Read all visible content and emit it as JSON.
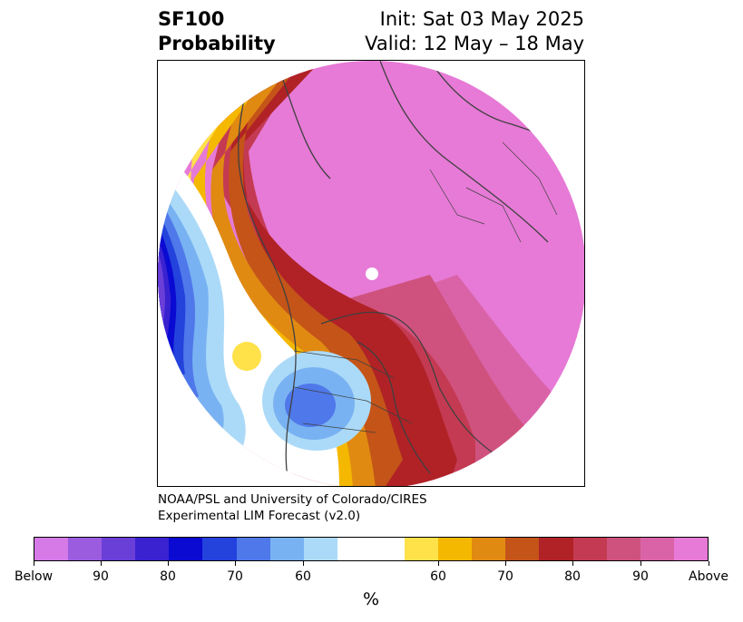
{
  "title": {
    "line1_left": "SF100",
    "line2_left": "Probability",
    "line1_right": "Init: Sat 03 May 2025",
    "line2_right": "Valid: 12 May – 18 May"
  },
  "credit": {
    "line1": "NOAA/PSL and University of Colorado/CIRES",
    "line2": "Experimental LIM Forecast (v2.0)"
  },
  "colorbar": {
    "unit": "%",
    "colors": [
      "#d67ae8",
      "#9b5ce0",
      "#6a3fd8",
      "#3a22d0",
      "#0a0ad2",
      "#2442dc",
      "#4f78ea",
      "#78b2f2",
      "#abdaf8",
      "#ffffff",
      "#ffffff",
      "#ffe14a",
      "#f5b800",
      "#e08a12",
      "#c45418",
      "#b02226",
      "#c43a52",
      "#cf527e",
      "#da63a8",
      "#e67ad6"
    ],
    "ticks": [
      {
        "label": "Below",
        "key": "below"
      },
      {
        "label": "90",
        "key": "below-90"
      },
      {
        "label": "80",
        "key": "below-80"
      },
      {
        "label": "70",
        "key": "below-70"
      },
      {
        "label": "60",
        "key": "below-60"
      },
      {
        "label": "60",
        "key": "above-60"
      },
      {
        "label": "70",
        "key": "above-70"
      },
      {
        "label": "80",
        "key": "above-80"
      },
      {
        "label": "90",
        "key": "above-90"
      },
      {
        "label": "Above",
        "key": "above"
      }
    ]
  }
}
